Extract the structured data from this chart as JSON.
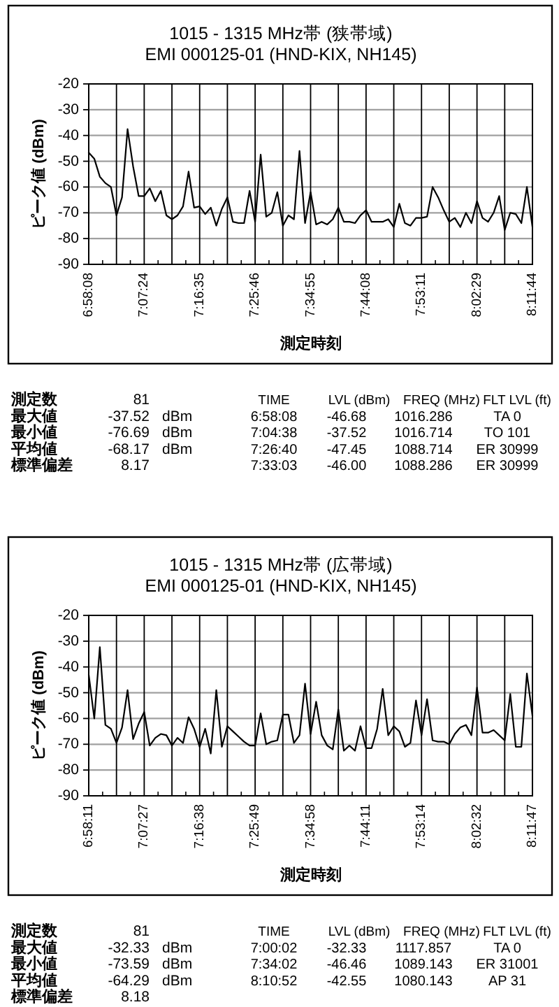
{
  "chart_data": [
    {
      "type": "line",
      "title": "1015 - 1315 MHz帯 (狭帯域)",
      "subtitle": "EMI 000125-01 (HND-KIX, NH145)",
      "xlabel": "測定時刻",
      "ylabel": "ピーク値 (dBm)",
      "categories": [
        "6:58:08",
        null,
        null,
        null,
        null,
        null,
        null,
        null,
        null,
        null,
        "7:07:24",
        null,
        null,
        null,
        null,
        null,
        null,
        null,
        null,
        null,
        "7:16:35",
        null,
        null,
        null,
        null,
        null,
        null,
        null,
        null,
        null,
        "7:25:46",
        null,
        null,
        null,
        null,
        null,
        null,
        null,
        null,
        null,
        "7:34:55",
        null,
        null,
        null,
        null,
        null,
        null,
        null,
        null,
        null,
        "7:44:08",
        null,
        null,
        null,
        null,
        null,
        null,
        null,
        null,
        null,
        "7:53:11",
        null,
        null,
        null,
        null,
        null,
        null,
        null,
        null,
        null,
        "8:02:29",
        null,
        null,
        null,
        null,
        null,
        null,
        null,
        null,
        null,
        "8:11:44"
      ],
      "values": [
        -46.68,
        -49,
        -56,
        -58.5,
        -60,
        -71,
        -64,
        -37.52,
        -52,
        -63.5,
        -63.5,
        -60.5,
        -65.5,
        -61.5,
        -71,
        -72.5,
        -71,
        -67.5,
        -54,
        -68,
        -67.5,
        -70.5,
        -68,
        -75,
        -68.5,
        -64,
        -73.5,
        -74,
        -74,
        -61.5,
        -73.5,
        -47.45,
        -71.5,
        -70,
        -62,
        -75,
        -71,
        -72.5,
        -46.0,
        -74,
        -62,
        -74.5,
        -73.5,
        -74.5,
        -72.5,
        -68,
        -73.5,
        -73.5,
        -74,
        -71,
        -69,
        -73.5,
        -73.5,
        -73.5,
        -72.5,
        -75.5,
        -66.5,
        -74,
        -75,
        -72,
        -72,
        -71.5,
        -60,
        -64,
        -69,
        -73.5,
        -72,
        -75.5,
        -70,
        -74,
        -65.5,
        -72,
        -73.5,
        -70,
        -63.5,
        -76.69,
        -70,
        -70.5,
        -74,
        -60,
        -75.5
      ],
      "color": "#000000",
      "ylim": [
        -90,
        -20
      ],
      "yticks": [
        -90,
        -80,
        -70,
        -60,
        -50,
        -40,
        -30,
        -20
      ],
      "grid": true,
      "annotations": [
        "測定数",
        "81",
        "TIME",
        "LVL (dBm)",
        "FREQ (MHz)",
        "FLT LVL (ft)",
        "最大値",
        "-37.52",
        "dBm",
        "6:58:08",
        "-46.68",
        "1016.286",
        "TA 0",
        "最小値",
        "-76.69",
        "dBm",
        "7:04:38",
        "-37.52",
        "1016.714",
        "TO 101",
        "平均値",
        "-68.17",
        "dBm",
        "7:26:40",
        "-47.45",
        "1088.714",
        "ER 30999",
        "標準偏差",
        "8.17",
        "7:33:03",
        "-46.00",
        "1088.286",
        "ER 30999"
      ]
    },
    {
      "type": "line",
      "title": "1015 - 1315 MHz帯 (広帯域)",
      "subtitle": "EMI 000125-01 (HND-KIX, NH145)",
      "xlabel": "測定時刻",
      "ylabel": "ピーク値 (dBm)",
      "categories": [
        "6:58:11",
        null,
        null,
        null,
        null,
        null,
        null,
        null,
        null,
        null,
        "7:07:27",
        null,
        null,
        null,
        null,
        null,
        null,
        null,
        null,
        null,
        "7:16:38",
        null,
        null,
        null,
        null,
        null,
        null,
        null,
        null,
        null,
        "7:25:49",
        null,
        null,
        null,
        null,
        null,
        null,
        null,
        null,
        null,
        "7:34:58",
        null,
        null,
        null,
        null,
        null,
        null,
        null,
        null,
        null,
        "7:44:11",
        null,
        null,
        null,
        null,
        null,
        null,
        null,
        null,
        null,
        "7:53:14",
        null,
        null,
        null,
        null,
        null,
        null,
        null,
        null,
        null,
        "8:02:32",
        null,
        null,
        null,
        null,
        null,
        null,
        null,
        null,
        null,
        "8:11:47"
      ],
      "values": [
        -43,
        -60,
        -32.33,
        -62.5,
        -64,
        -69.5,
        -63.5,
        -49,
        -68,
        -62,
        -57.5,
        -70.5,
        -67.5,
        -66,
        -66.5,
        -70.5,
        -67.5,
        -69.5,
        -59.5,
        -64,
        -71,
        -64,
        -73.59,
        -49,
        -71,
        -63,
        -65,
        -67,
        -69,
        -70.5,
        -70.5,
        -58,
        -70,
        -69,
        -68.5,
        -58.5,
        -58.5,
        -69.5,
        -66.5,
        -46.46,
        -66,
        -53.5,
        -66.5,
        -70.5,
        -72,
        -56.5,
        -72.5,
        -70.5,
        -72.5,
        -63,
        -71.5,
        -71.5,
        -64,
        -48.5,
        -66.5,
        -63,
        -65,
        -71,
        -69.5,
        -53,
        -66.5,
        -52.5,
        -68.5,
        -69,
        -69,
        -70,
        -66,
        -63.5,
        -62.5,
        -66.5,
        -48,
        -65.5,
        -65.5,
        -64.5,
        -66.5,
        -68.5,
        -50.5,
        -71,
        -71,
        -42.55,
        -59
      ],
      "color": "#000000",
      "ylim": [
        -90,
        -20
      ],
      "yticks": [
        -90,
        -80,
        -70,
        -60,
        -50,
        -40,
        -30,
        -20
      ],
      "grid": true,
      "annotations": [
        "測定数",
        "81",
        "TIME",
        "LVL (dBm)",
        "FREQ (MHz)",
        "FLT LVL (ft)",
        "最大値",
        "-32.33",
        "dBm",
        "7:00:02",
        "-32.33",
        "1117.857",
        "TA 0",
        "最小値",
        "-73.59",
        "dBm",
        "7:34:02",
        "-46.46",
        "1089.143",
        "ER 31001",
        "平均値",
        "-64.29",
        "dBm",
        "8:10:52",
        "-42.55",
        "1080.143",
        "AP 31",
        "標準偏差",
        "8.18"
      ]
    }
  ]
}
